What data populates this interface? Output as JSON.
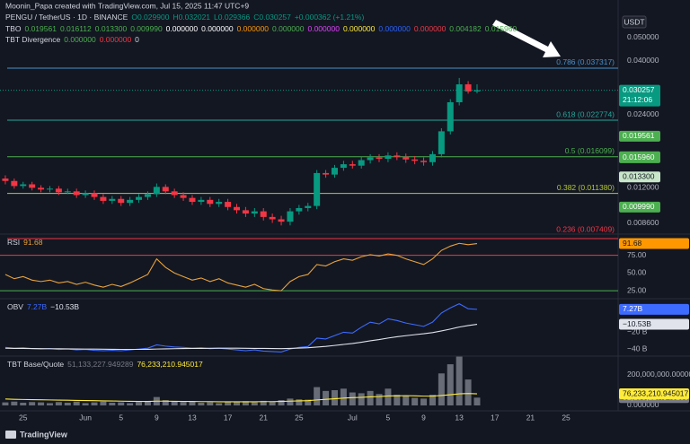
{
  "watermark": "Moonin_Papa created with TradingView.com, Jul 15, 2025 11:47 UTC+9",
  "legend": {
    "symbol": "PENGU / TetherUS · 1D · BINANCE",
    "ohlc": [
      "O0.029900",
      "H0.032021",
      "L0.029366",
      "C0.030257",
      "+0.000362 (+1.21%)"
    ],
    "ohlc_color": "#089981",
    "tbo_name": "TBO",
    "tbo_values": [
      "0.019561",
      "0.016112",
      "0.013300",
      "0.009990",
      "0.000000",
      "0.000000",
      "0.000000",
      "0.000000",
      "0.000000",
      "0.000000",
      "0.000000",
      "0.000000",
      "0.004182",
      "0.015960"
    ],
    "tbo_colors": [
      "#4caf50",
      "#4caf50",
      "#4caf50",
      "#4caf50",
      "#ffffff",
      "#ffffff",
      "#ff9800",
      "#4caf50",
      "#e040fb",
      "#ffeb3b",
      "#2962ff",
      "#f23645",
      "#4caf50",
      "#4caf50"
    ],
    "div_name": "TBT Divergence",
    "div_values": [
      "0.000000",
      "0.000000",
      "0"
    ],
    "div_colors": [
      "#4caf50",
      "#f23645",
      "#d1d4dc"
    ]
  },
  "currency": "USDT",
  "footer": "TradingView",
  "chart_data": [
    {
      "type": "candlestick",
      "log": true,
      "up_color": "#089981",
      "down_color": "#f23645",
      "xlim": [
        -0.6,
        68.85
      ],
      "xticks": [
        {
          "value": 2,
          "label": "25"
        },
        {
          "value": 9,
          "label": "Jun"
        },
        {
          "value": 13,
          "label": "5"
        },
        {
          "value": 17,
          "label": "9"
        },
        {
          "value": 21,
          "label": "13"
        },
        {
          "value": 25,
          "label": "17"
        },
        {
          "value": 29,
          "label": "21"
        },
        {
          "value": 33,
          "label": "25"
        },
        {
          "value": 39,
          "label": "Jul"
        },
        {
          "value": 43,
          "label": "5"
        },
        {
          "value": 47,
          "label": "9"
        },
        {
          "value": 51,
          "label": "13"
        },
        {
          "value": 55,
          "label": "17"
        },
        {
          "value": 59,
          "label": "21"
        },
        {
          "value": 63,
          "label": "25"
        }
      ],
      "ylim": [
        0.0078,
        0.0712
      ],
      "yticks": [
        {
          "value": 0.05,
          "label": "0.050000"
        },
        {
          "value": 0.04,
          "label": "0.040000"
        },
        {
          "value": 0.024,
          "label": "0.024000"
        },
        {
          "value": 0.012,
          "label": "0.012000"
        },
        {
          "value": 0.0086,
          "label": "0.008600"
        }
      ],
      "open": [
        0.0131,
        0.0128,
        0.0122,
        0.0124,
        0.012,
        0.0118,
        0.0119,
        0.0115,
        0.0116,
        0.0112,
        0.0114,
        0.011,
        0.0106,
        0.0108,
        0.0104,
        0.0107,
        0.011,
        0.0113,
        0.0121,
        0.0116,
        0.0112,
        0.0109,
        0.0105,
        0.0107,
        0.0103,
        0.0105,
        0.01,
        0.0097,
        0.0094,
        0.0096,
        0.0091,
        0.0089,
        0.0087,
        0.0096,
        0.0099,
        0.0101,
        0.0138,
        0.0136,
        0.0145,
        0.015,
        0.0148,
        0.0156,
        0.016,
        0.0158,
        0.0163,
        0.0161,
        0.0157,
        0.0155,
        0.0153,
        0.0165,
        0.0205,
        0.027,
        0.032,
        0.0299
      ],
      "high": [
        0.0135,
        0.0131,
        0.0127,
        0.0127,
        0.0123,
        0.0122,
        0.0122,
        0.0119,
        0.0119,
        0.0117,
        0.0117,
        0.0113,
        0.0111,
        0.0111,
        0.011,
        0.0113,
        0.0116,
        0.0125,
        0.0124,
        0.0119,
        0.0115,
        0.0112,
        0.011,
        0.011,
        0.0108,
        0.0108,
        0.0103,
        0.01,
        0.0099,
        0.0099,
        0.0094,
        0.0092,
        0.0099,
        0.0102,
        0.0104,
        0.0142,
        0.0142,
        0.0149,
        0.0155,
        0.0155,
        0.0161,
        0.0165,
        0.0165,
        0.0168,
        0.0168,
        0.0166,
        0.0162,
        0.016,
        0.017,
        0.0211,
        0.0278,
        0.034,
        0.033,
        0.032021
      ],
      "low": [
        0.0124,
        0.0119,
        0.0119,
        0.0117,
        0.0115,
        0.0115,
        0.0112,
        0.0113,
        0.0109,
        0.0109,
        0.0107,
        0.0103,
        0.0103,
        0.0101,
        0.0101,
        0.0104,
        0.0107,
        0.011,
        0.0113,
        0.0109,
        0.0106,
        0.0102,
        0.0102,
        0.01,
        0.01,
        0.0097,
        0.0094,
        0.0091,
        0.0091,
        0.0088,
        0.0086,
        0.0084,
        0.0084,
        0.0093,
        0.0096,
        0.0098,
        0.0132,
        0.0132,
        0.0141,
        0.0144,
        0.0144,
        0.0151,
        0.0153,
        0.0153,
        0.0156,
        0.0152,
        0.015,
        0.0148,
        0.0148,
        0.016,
        0.0199,
        0.0262,
        0.0293,
        0.029366
      ],
      "close": [
        0.0128,
        0.0122,
        0.0124,
        0.012,
        0.0118,
        0.0119,
        0.0115,
        0.0116,
        0.0112,
        0.0114,
        0.011,
        0.0106,
        0.0108,
        0.0104,
        0.0107,
        0.011,
        0.0113,
        0.0121,
        0.0116,
        0.0112,
        0.0109,
        0.0105,
        0.0107,
        0.0103,
        0.0105,
        0.01,
        0.0097,
        0.0094,
        0.0096,
        0.0091,
        0.0089,
        0.0087,
        0.0096,
        0.0099,
        0.0101,
        0.0138,
        0.0136,
        0.0145,
        0.015,
        0.0148,
        0.0156,
        0.016,
        0.0158,
        0.0163,
        0.0161,
        0.0157,
        0.0155,
        0.0153,
        0.0165,
        0.0205,
        0.027,
        0.032,
        0.0299,
        0.030257
      ],
      "fib": [
        {
          "label": "0.786 (0.037317)",
          "value": 0.037317,
          "color": "#4a90c8"
        },
        {
          "label": "0.618 (0.022774)",
          "value": 0.022774,
          "color": "#26a69a"
        },
        {
          "label": "0.5 (0.016099)",
          "value": 0.016099,
          "color": "#4caf50"
        },
        {
          "label": "0.382 (0.011380)",
          "value": 0.01138,
          "color": "#b5c934"
        },
        {
          "label": "0.236 (0.007409)",
          "value": 0.007409,
          "color": "#f23645"
        }
      ],
      "markers": [
        {
          "value": 0.030257,
          "label": "0.030257",
          "countdown": "21:12:06",
          "color": "#089981",
          "text_color": "#ffffff"
        },
        {
          "value": 0.019561,
          "label": "0.019561",
          "color": "#4caf50",
          "text_color": "#ffffff"
        },
        {
          "value": 0.016112,
          "label": "0.016112",
          "color": "#4caf50",
          "text_color": "#ffffff"
        },
        {
          "value": 0.01596,
          "label": "0.015960",
          "color": "#4caf50",
          "text_color": "#ffffff"
        },
        {
          "value": 0.0133,
          "label": "0.013300",
          "color": "#c8e6c9",
          "text_color": "#131722"
        },
        {
          "value": 0.00999,
          "label": "0.009990",
          "color": "#4caf50",
          "text_color": "#ffffff"
        }
      ]
    },
    {
      "type": "line",
      "title": "RSI",
      "color": "#e8a33d",
      "ylim": [
        15,
        103.75
      ],
      "yticks": [
        {
          "value": 75,
          "label": "75.00"
        },
        {
          "value": 50,
          "label": "50.00"
        },
        {
          "value": 25,
          "label": "25.00"
        }
      ],
      "levels": [
        {
          "value": 75,
          "color": "#f23645"
        },
        {
          "value": 25,
          "color": "#4caf50"
        }
      ],
      "values": [
        48,
        42,
        45,
        40,
        38,
        40,
        36,
        38,
        34,
        37,
        33,
        30,
        34,
        31,
        36,
        42,
        48,
        70,
        58,
        50,
        45,
        40,
        43,
        38,
        42,
        36,
        33,
        30,
        34,
        28,
        26,
        25,
        38,
        45,
        48,
        62,
        60,
        66,
        70,
        68,
        73,
        76,
        74,
        77,
        75,
        70,
        66,
        62,
        70,
        82,
        88,
        92,
        90,
        91.68
      ],
      "box_color": "#ff9800",
      "box_text": "#131722"
    },
    {
      "type": "line",
      "title": "OBV",
      "ylim": [
        -48.4,
        18.9
      ],
      "yticks": [
        {
          "value": -20,
          "label": "−20 B"
        },
        {
          "value": -40,
          "label": "−40 B"
        }
      ],
      "series": [
        {
          "color": "#3d6bff",
          "last_label": "7.27B",
          "box_text": "#ffffff",
          "values": [
            -38,
            -39,
            -38.5,
            -39.5,
            -40,
            -39.5,
            -40.5,
            -40,
            -41,
            -40.5,
            -41.5,
            -42,
            -41.5,
            -42,
            -41,
            -40,
            -39,
            -35,
            -36.5,
            -37.5,
            -38,
            -39,
            -38.5,
            -39.5,
            -39,
            -40,
            -41,
            -42,
            -41,
            -42.5,
            -43,
            -43.5,
            -40,
            -38,
            -37,
            -27,
            -28,
            -24,
            -20,
            -21,
            -14,
            -8,
            -10,
            -4,
            -6,
            -9,
            -11,
            -13,
            -8,
            3,
            9,
            14,
            8,
            7.27
          ]
        },
        {
          "color": "#e0e3eb",
          "last_label": "−10.53B",
          "box_text": "#131722",
          "values": [
            -39,
            -39.2,
            -39.3,
            -39.4,
            -39.5,
            -39.6,
            -39.7,
            -39.8,
            -39.9,
            -40,
            -40.1,
            -40.2,
            -40.3,
            -40.4,
            -40.4,
            -40.4,
            -40.3,
            -40,
            -39.8,
            -39.6,
            -39.4,
            -39.3,
            -39.2,
            -39.1,
            -39,
            -39,
            -39,
            -39.1,
            -39.2,
            -39.3,
            -39.4,
            -39.5,
            -39.3,
            -38.9,
            -38.5,
            -37.6,
            -36.8,
            -35.7,
            -34.5,
            -33.4,
            -31.9,
            -30.2,
            -28.7,
            -26.9,
            -25.4,
            -24.1,
            -22.9,
            -21.8,
            -20.4,
            -18.4,
            -16.2,
            -13.8,
            -12,
            -10.53
          ]
        }
      ]
    },
    {
      "type": "bar",
      "title": "TBT Base/Quote",
      "ylim": [
        -35300000,
        317600000
      ],
      "yticks": [
        {
          "value": 200000000,
          "label": "200,000,000.000000"
        },
        {
          "value": 0,
          "label": "0.000000"
        }
      ],
      "series": [
        {
          "color": "#787b86",
          "last_label": "51,133,227.949289",
          "box_text": "#ffffff",
          "values": [
            20000000,
            25000000,
            18000000,
            22000000,
            20000000,
            15000000,
            22000000,
            18000000,
            25000000,
            15000000,
            20000000,
            25000000,
            18000000,
            20000000,
            15000000,
            22000000,
            25000000,
            55000000,
            35000000,
            28000000,
            22000000,
            25000000,
            18000000,
            22000000,
            15000000,
            25000000,
            22000000,
            28000000,
            20000000,
            30000000,
            25000000,
            35000000,
            45000000,
            40000000,
            38000000,
            120000000,
            95000000,
            100000000,
            110000000,
            85000000,
            80000000,
            95000000,
            75000000,
            110000000,
            70000000,
            65000000,
            50000000,
            45000000,
            70000000,
            210000000,
            270000000,
            320000000,
            170000000,
            51133227.949289
          ]
        },
        {
          "type": "line",
          "color": "#ffeb3b",
          "last_label": "76,233,210.945017",
          "box_text": "#131722",
          "values": [
            42000000,
            40000000,
            39000000,
            38000000,
            37000000,
            36000000,
            35000000,
            34000000,
            33000000,
            32000000,
            31000000,
            30000000,
            29000000,
            28000000,
            27000000,
            26000000,
            26000000,
            28000000,
            28000000,
            27000000,
            26000000,
            26000000,
            25000000,
            25000000,
            24000000,
            24000000,
            24000000,
            24000000,
            24000000,
            25000000,
            25000000,
            26000000,
            28000000,
            30000000,
            31000000,
            36000000,
            40000000,
            44000000,
            48000000,
            51000000,
            53000000,
            56000000,
            58000000,
            62000000,
            63000000,
            64000000,
            63000000,
            61000000,
            61000000,
            65000000,
            70000000,
            76000000,
            78000000,
            76233210.945017
          ]
        }
      ]
    }
  ]
}
